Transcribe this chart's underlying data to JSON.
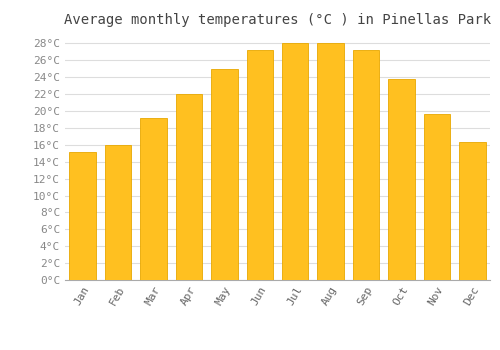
{
  "title": "Average monthly temperatures (°C ) in Pinellas Park",
  "months": [
    "Jan",
    "Feb",
    "Mar",
    "Apr",
    "May",
    "Jun",
    "Jul",
    "Aug",
    "Sep",
    "Oct",
    "Nov",
    "Dec"
  ],
  "values": [
    15.1,
    16.0,
    19.2,
    22.0,
    25.0,
    27.2,
    28.0,
    28.0,
    27.2,
    23.8,
    19.7,
    16.3
  ],
  "bar_color": "#FFC020",
  "bar_edge_color": "#E8A800",
  "background_color": "#FFFFFF",
  "grid_color": "#DDDDDD",
  "ylim": [
    0,
    29
  ],
  "yticks": [
    0,
    2,
    4,
    6,
    8,
    10,
    12,
    14,
    16,
    18,
    20,
    22,
    24,
    26,
    28
  ],
  "title_fontsize": 10,
  "tick_fontsize": 8,
  "font_family": "monospace"
}
